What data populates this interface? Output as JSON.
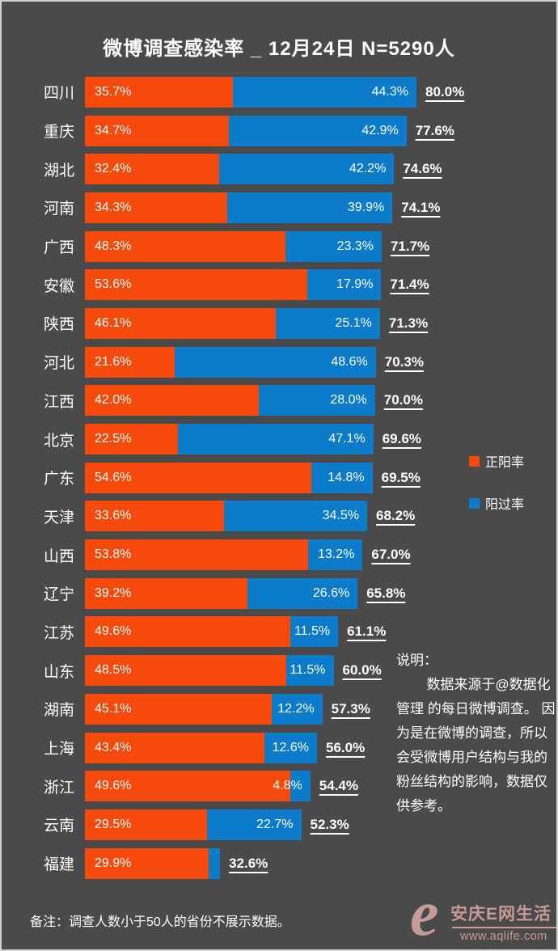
{
  "title": "微博调查感染率 _ 12月24日 N=5290人",
  "legend": {
    "positive_now": "正阳率",
    "positive_past": "阳过率"
  },
  "note_right": {
    "heading": "说明：",
    "body": "数据来源于@数据化管理 的每日微博调查。 因为是在微博的调查，所以会受微博用户结构与我的粉丝结构的影响，数据仅供参考。"
  },
  "footer_note": "备注：调查人数小于50人的省份不展示数据。",
  "watermark": {
    "logo": "e",
    "name": "安庆E网生活",
    "url": "www.aqlife.com"
  },
  "colors": {
    "orange": "#f54a0c",
    "blue": "#0b7bca",
    "background": "#4a4a4a",
    "text": "#ffffff",
    "watermark_pink": "#c69b97"
  },
  "chart_data": {
    "type": "bar",
    "orientation": "horizontal",
    "stacked": true,
    "title": "微博调查感染率 _ 12月24日 N=5290人",
    "categories": [
      "四川",
      "重庆",
      "湖北",
      "河南",
      "广西",
      "安徽",
      "陕西",
      "河北",
      "江西",
      "北京",
      "广东",
      "天津",
      "山西",
      "辽宁",
      "江苏",
      "山东",
      "湖南",
      "上海",
      "浙江",
      "云南",
      "福建"
    ],
    "series": [
      {
        "name": "正阳率",
        "color": "#f54a0c",
        "values": [
          35.7,
          34.7,
          32.4,
          34.3,
          48.3,
          53.6,
          46.1,
          21.6,
          42.0,
          22.5,
          54.6,
          33.6,
          53.8,
          39.2,
          49.6,
          48.5,
          45.1,
          43.4,
          49.6,
          29.5,
          29.9
        ]
      },
      {
        "name": "阳过率",
        "color": "#0b7bca",
        "values": [
          44.3,
          42.9,
          42.2,
          39.9,
          23.3,
          17.9,
          25.1,
          48.6,
          28.0,
          47.1,
          14.8,
          34.5,
          13.2,
          26.6,
          11.5,
          11.5,
          12.2,
          12.6,
          4.8,
          22.7,
          2.7
        ]
      }
    ],
    "totals": [
      80.0,
      77.6,
      74.6,
      74.1,
      71.7,
      71.4,
      71.3,
      70.3,
      70.0,
      69.6,
      69.5,
      68.2,
      67.0,
      65.8,
      61.1,
      60.0,
      57.3,
      56.0,
      54.4,
      52.3,
      32.6
    ],
    "xlim": [
      0,
      80
    ],
    "value_suffix": "%",
    "label_min_pct": 3,
    "grid": false,
    "legend_position": "right"
  }
}
